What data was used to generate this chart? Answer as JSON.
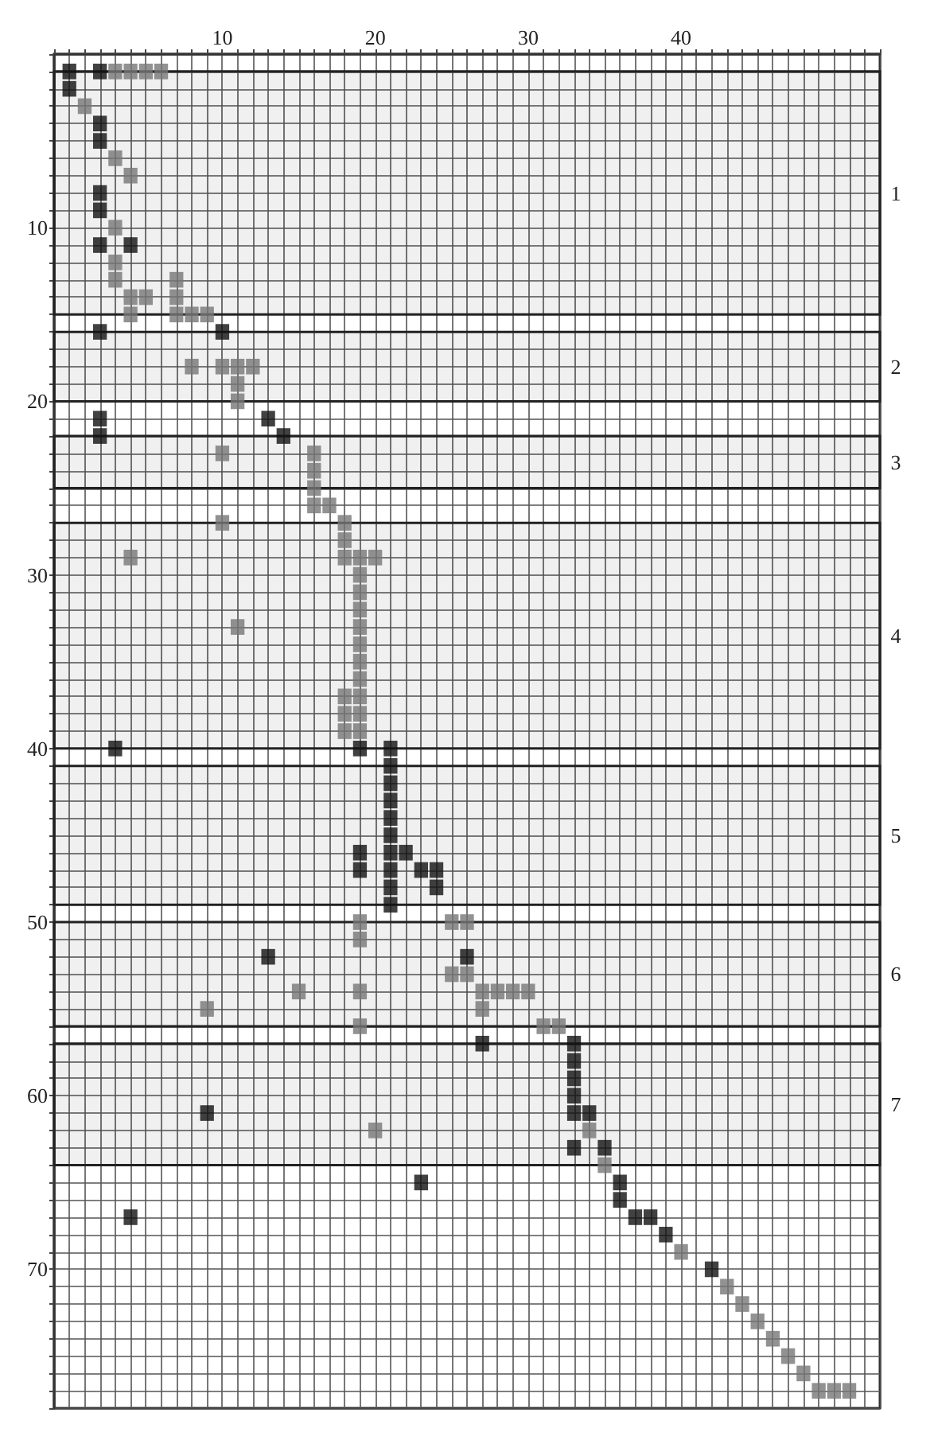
{
  "chart_data": {
    "type": "scatter",
    "marker": "square",
    "grid": true,
    "xlim": [
      -1,
      53
    ],
    "ylim": [
      78,
      0
    ],
    "xticks": [
      {
        "value": -1,
        "label": null
      },
      {
        "value": 0,
        "label": null
      },
      {
        "value": 1,
        "label": null
      },
      {
        "value": 2,
        "label": null
      },
      {
        "value": 3,
        "label": null
      },
      {
        "value": 4,
        "label": null
      },
      {
        "value": 5,
        "label": null
      },
      {
        "value": 6,
        "label": null
      },
      {
        "value": 7,
        "label": null
      },
      {
        "value": 8,
        "label": null
      },
      {
        "value": 9,
        "label": null
      },
      10,
      {
        "value": 11,
        "label": null
      },
      {
        "value": 12,
        "label": null
      },
      {
        "value": 13,
        "label": null
      },
      {
        "value": 14,
        "label": null
      },
      {
        "value": 15,
        "label": null
      },
      {
        "value": 16,
        "label": null
      },
      {
        "value": 17,
        "label": null
      },
      {
        "value": 18,
        "label": null
      },
      {
        "value": 19,
        "label": null
      },
      20,
      {
        "value": 21,
        "label": null
      },
      {
        "value": 22,
        "label": null
      },
      {
        "value": 23,
        "label": null
      },
      {
        "value": 24,
        "label": null
      },
      {
        "value": 25,
        "label": null
      },
      {
        "value": 26,
        "label": null
      },
      {
        "value": 27,
        "label": null
      },
      {
        "value": 28,
        "label": null
      },
      {
        "value": 29,
        "label": null
      },
      30,
      {
        "value": 31,
        "label": null
      },
      {
        "value": 32,
        "label": null
      },
      {
        "value": 33,
        "label": null
      },
      {
        "value": 34,
        "label": null
      },
      {
        "value": 35,
        "label": null
      },
      {
        "value": 36,
        "label": null
      },
      {
        "value": 37,
        "label": null
      },
      {
        "value": 38,
        "label": null
      },
      {
        "value": 39,
        "label": null
      },
      40,
      {
        "value": 41,
        "label": null
      },
      {
        "value": 42,
        "label": null
      },
      {
        "value": 43,
        "label": null
      },
      {
        "value": 44,
        "label": null
      },
      {
        "value": 45,
        "label": null
      },
      {
        "value": 46,
        "label": null
      },
      {
        "value": 47,
        "label": null
      },
      {
        "value": 48,
        "label": null
      },
      {
        "value": 49,
        "label": null
      },
      {
        "value": 50,
        "label": null
      },
      {
        "value": 51,
        "label": null
      },
      {
        "value": 52,
        "label": null
      },
      {
        "value": 53,
        "label": null
      }
    ],
    "yticks": [
      {
        "value": 0,
        "label": null
      },
      {
        "value": 1,
        "label": null
      },
      {
        "value": 2,
        "label": null
      },
      {
        "value": 3,
        "label": null
      },
      {
        "value": 4,
        "label": null
      },
      {
        "value": 5,
        "label": null
      },
      {
        "value": 6,
        "label": null
      },
      {
        "value": 7,
        "label": null
      },
      {
        "value": 8,
        "label": null
      },
      {
        "value": 9,
        "label": null
      },
      10,
      {
        "value": 11,
        "label": null
      },
      {
        "value": 12,
        "label": null
      },
      {
        "value": 13,
        "label": null
      },
      {
        "value": 14,
        "label": null
      },
      {
        "value": 15,
        "label": null
      },
      {
        "value": 16,
        "label": null
      },
      {
        "value": 17,
        "label": null
      },
      {
        "value": 18,
        "label": null
      },
      {
        "value": 19,
        "label": null
      },
      20,
      {
        "value": 21,
        "label": null
      },
      {
        "value": 22,
        "label": null
      },
      {
        "value": 23,
        "label": null
      },
      {
        "value": 24,
        "label": null
      },
      {
        "value": 25,
        "label": null
      },
      {
        "value": 26,
        "label": null
      },
      {
        "value": 27,
        "label": null
      },
      {
        "value": 28,
        "label": null
      },
      {
        "value": 29,
        "label": null
      },
      30,
      {
        "value": 31,
        "label": null
      },
      {
        "value": 32,
        "label": null
      },
      {
        "value": 33,
        "label": null
      },
      {
        "value": 34,
        "label": null
      },
      {
        "value": 35,
        "label": null
      },
      {
        "value": 36,
        "label": null
      },
      {
        "value": 37,
        "label": null
      },
      {
        "value": 38,
        "label": null
      },
      {
        "value": 39,
        "label": null
      },
      40,
      {
        "value": 41,
        "label": null
      },
      {
        "value": 42,
        "label": null
      },
      {
        "value": 43,
        "label": null
      },
      {
        "value": 44,
        "label": null
      },
      {
        "value": 45,
        "label": null
      },
      {
        "value": 46,
        "label": null
      },
      {
        "value": 47,
        "label": null
      },
      {
        "value": 48,
        "label": null
      },
      {
        "value": 49,
        "label": null
      },
      50,
      {
        "value": 51,
        "label": null
      },
      {
        "value": 52,
        "label": null
      },
      {
        "value": 53,
        "label": null
      },
      {
        "value": 54,
        "label": null
      },
      {
        "value": 55,
        "label": null
      },
      {
        "value": 56,
        "label": null
      },
      {
        "value": 57,
        "label": null
      },
      {
        "value": 58,
        "label": null
      },
      {
        "value": 59,
        "label": null
      },
      60,
      {
        "value": 61,
        "label": null
      },
      {
        "value": 62,
        "label": null
      },
      {
        "value": 63,
        "label": null
      },
      {
        "value": 64,
        "label": null
      },
      {
        "value": 65,
        "label": null
      },
      {
        "value": 66,
        "label": null
      },
      {
        "value": 67,
        "label": null
      },
      {
        "value": 68,
        "label": null
      },
      {
        "value": 69,
        "label": null
      },
      70,
      {
        "value": 71,
        "label": null
      },
      {
        "value": 72,
        "label": null
      },
      {
        "value": 73,
        "label": null
      },
      {
        "value": 74,
        "label": null
      },
      {
        "value": 75,
        "label": null
      },
      {
        "value": 76,
        "label": null
      },
      {
        "value": 77,
        "label": null
      },
      {
        "value": 78,
        "label": null
      }
    ],
    "bands": [
      {
        "axis": "y",
        "from": 1,
        "to": 15,
        "label": "1"
      },
      {
        "axis": "y",
        "from": 16,
        "to": 20,
        "label": "2"
      },
      {
        "axis": "y",
        "from": 22,
        "to": 25,
        "label": "3"
      },
      {
        "axis": "y",
        "from": 27,
        "to": 40,
        "label": "4"
      },
      {
        "axis": "y",
        "from": 41,
        "to": 49,
        "label": "5"
      },
      {
        "axis": "y",
        "from": 50,
        "to": 56,
        "label": "6"
      },
      {
        "axis": "y",
        "from": 57,
        "to": 64,
        "label": "7"
      }
    ],
    "series": [
      {
        "color": "#777777",
        "x": [
          3,
          4,
          5,
          6,
          1,
          3,
          4,
          3,
          3,
          3,
          4,
          4,
          5,
          7,
          7,
          7,
          8,
          9,
          8,
          10,
          11,
          12,
          11,
          11,
          10,
          16,
          16,
          16,
          16,
          17,
          10,
          18,
          18,
          18,
          19,
          20,
          4,
          19,
          19,
          19,
          19,
          19,
          19,
          19,
          19,
          19,
          19,
          18,
          18,
          18,
          11,
          19,
          19,
          25,
          26,
          25,
          26,
          27,
          28,
          29,
          30,
          27,
          31,
          32,
          9,
          15,
          19,
          19,
          20,
          34,
          35,
          40,
          43,
          44,
          45,
          46,
          47,
          48,
          49,
          50,
          51
        ],
        "values": [
          1,
          1,
          1,
          1,
          3,
          6,
          7,
          10,
          12,
          13,
          14,
          15,
          14,
          13,
          14,
          15,
          15,
          15,
          18,
          18,
          18,
          18,
          19,
          20,
          23,
          23,
          24,
          25,
          26,
          26,
          27,
          27,
          28,
          29,
          29,
          29,
          29,
          30,
          31,
          32,
          33,
          34,
          35,
          36,
          37,
          38,
          39,
          37,
          38,
          39,
          33,
          50,
          51,
          50,
          50,
          53,
          53,
          54,
          54,
          54,
          54,
          55,
          56,
          56,
          55,
          54,
          54,
          56,
          62,
          62,
          64,
          69,
          71,
          72,
          73,
          74,
          75,
          76,
          77,
          77,
          77
        ]
      },
      {
        "color": "#111111",
        "x": [
          0,
          0,
          2,
          2,
          2,
          2,
          2,
          2,
          4,
          2,
          10,
          2,
          2,
          13,
          14,
          3,
          19,
          21,
          21,
          21,
          21,
          21,
          21,
          21,
          21,
          21,
          21,
          19,
          19,
          22,
          23,
          24,
          24,
          13,
          26,
          27,
          33,
          33,
          33,
          33,
          33,
          34,
          33,
          35,
          36,
          36,
          37,
          38,
          39,
          42,
          9,
          23,
          4
        ],
        "values": [
          1,
          2,
          1,
          4,
          5,
          8,
          9,
          11,
          11,
          16,
          16,
          21,
          22,
          21,
          22,
          40,
          40,
          40,
          41,
          42,
          43,
          44,
          45,
          46,
          47,
          48,
          49,
          46,
          47,
          46,
          47,
          47,
          48,
          52,
          52,
          57,
          57,
          58,
          59,
          60,
          61,
          61,
          63,
          63,
          65,
          66,
          67,
          67,
          68,
          70,
          61,
          65,
          67
        ]
      }
    ]
  }
}
